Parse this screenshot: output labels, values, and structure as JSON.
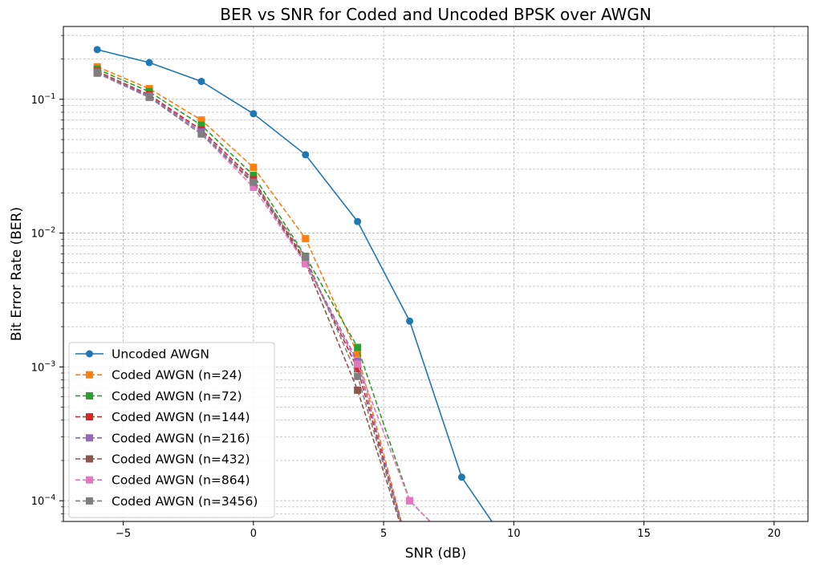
{
  "chart_data": {
    "type": "line",
    "title": "BER vs SNR for Coded and Uncoded BPSK over AWGN",
    "xlabel": "SNR (dB)",
    "ylabel": "Bit Error Rate (BER)",
    "x_scale": "linear",
    "y_scale": "log",
    "xlim": [
      -7.3,
      21.3
    ],
    "ylim": [
      7e-05,
      0.35
    ],
    "grid": true,
    "legend_position": "lower-left",
    "x_ticks": [
      -5,
      0,
      5,
      10,
      15,
      20
    ],
    "x_tick_labels": [
      "−5",
      "0",
      "5",
      "10",
      "15",
      "20"
    ],
    "y_ticks": [
      0.0001,
      0.001,
      0.01,
      0.1
    ],
    "y_tick_labels": [
      {
        "base": "10",
        "exp": "−4"
      },
      {
        "base": "10",
        "exp": "−3"
      },
      {
        "base": "10",
        "exp": "−2"
      },
      {
        "base": "10",
        "exp": "−1"
      }
    ],
    "series": [
      {
        "name": "Uncoded AWGN",
        "color": "#1f77b4",
        "style": "solid",
        "marker": "circle",
        "x": [
          -6,
          -4,
          -2,
          0,
          2,
          4,
          6,
          8,
          10
        ],
        "y": [
          0.235,
          0.188,
          0.136,
          0.078,
          0.0385,
          0.0122,
          0.0022,
          0.00015,
          0
        ]
      },
      {
        "name": "Coded AWGN (n=24)",
        "color": "#ff7f0e",
        "style": "dashed",
        "marker": "square",
        "x": [
          -6,
          -4,
          -2,
          0,
          2,
          4,
          6
        ],
        "y": [
          0.175,
          0.12,
          0.07,
          0.031,
          0.0091,
          0.00125,
          0
        ]
      },
      {
        "name": "Coded AWGN (n=72)",
        "color": "#2ca02c",
        "style": "dashed",
        "marker": "square",
        "x": [
          -6,
          -4,
          -2,
          0,
          2,
          4,
          6,
          8
        ],
        "y": [
          0.168,
          0.114,
          0.064,
          0.027,
          0.0067,
          0.0014,
          0.0001,
          0
        ]
      },
      {
        "name": "Coded AWGN (n=144)",
        "color": "#d62728",
        "style": "dashed",
        "marker": "square",
        "x": [
          -6,
          -4,
          -2,
          0,
          2,
          4,
          6
        ],
        "y": [
          0.162,
          0.108,
          0.059,
          0.025,
          0.0062,
          0.00097,
          0
        ]
      },
      {
        "name": "Coded AWGN (n=216)",
        "color": "#9467bd",
        "style": "dashed",
        "marker": "square",
        "x": [
          -6,
          -4,
          -2,
          0,
          2,
          4,
          6
        ],
        "y": [
          0.16,
          0.106,
          0.057,
          0.024,
          0.006,
          0.0011,
          0
        ]
      },
      {
        "name": "Coded AWGN (n=432)",
        "color": "#8c564b",
        "style": "dashed",
        "marker": "square",
        "x": [
          -6,
          -4,
          -2,
          0,
          2,
          4,
          6
        ],
        "y": [
          0.158,
          0.104,
          0.055,
          0.0235,
          0.006,
          0.00067,
          0
        ]
      },
      {
        "name": "Coded AWGN (n=864)",
        "color": "#e377c2",
        "style": "dashed",
        "marker": "square",
        "x": [
          -6,
          -4,
          -2,
          0,
          2,
          4,
          6,
          8
        ],
        "y": [
          0.156,
          0.103,
          0.055,
          0.022,
          0.0059,
          0.00105,
          0.0001,
          0
        ]
      },
      {
        "name": "Coded AWGN (n=3456)",
        "color": "#7f7f7f",
        "style": "dashed",
        "marker": "square",
        "x": [
          -6,
          -4,
          -2,
          0,
          2,
          4,
          6
        ],
        "y": [
          0.158,
          0.104,
          0.055,
          0.024,
          0.0066,
          0.00085,
          0
        ]
      }
    ]
  }
}
